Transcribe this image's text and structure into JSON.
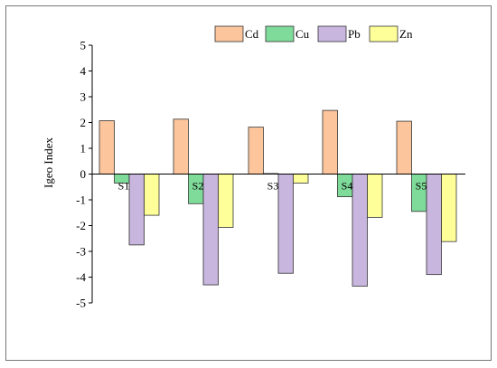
{
  "chart_data": {
    "type": "bar",
    "title": "",
    "xlabel": "",
    "ylabel": "Igeo Index",
    "ylim": [
      -5,
      5
    ],
    "yticks": [
      5,
      4,
      3,
      2,
      1,
      0,
      -1,
      -2,
      -3,
      -4,
      -5
    ],
    "categories": [
      "S1",
      "S2",
      "S3",
      "S4",
      "S5"
    ],
    "series": [
      {
        "name": "Cd",
        "color": "#FDC59C",
        "values": [
          2.07,
          2.13,
          1.82,
          2.47,
          2.05
        ]
      },
      {
        "name": "Cu",
        "color": "#7FDB9A",
        "values": [
          -0.35,
          -1.15,
          0.02,
          -0.88,
          -1.45
        ]
      },
      {
        "name": "Pb",
        "color": "#C8B6DE",
        "values": [
          -2.75,
          -4.3,
          -3.85,
          -4.35,
          -3.9
        ]
      },
      {
        "name": "Zn",
        "color": "#FFFF99",
        "values": [
          -1.6,
          -2.07,
          -0.35,
          -1.68,
          -2.62
        ]
      }
    ],
    "legend_position": "top-right",
    "grid": false
  }
}
